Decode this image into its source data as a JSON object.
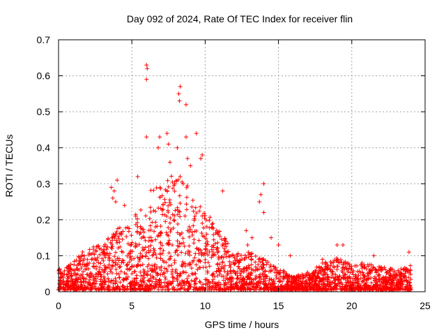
{
  "chart_data": {
    "type": "scatter",
    "title": "Day 092 of 2024, Rate Of TEC Index for receiver flin",
    "xlabel": "GPS time / hours",
    "ylabel": "ROTI / TECUs",
    "xlim": [
      0,
      25
    ],
    "ylim": [
      0,
      0.7
    ],
    "xticks": [
      "0",
      "5",
      "10",
      "15",
      "20",
      "25"
    ],
    "xtick_values": [
      0,
      5,
      10,
      15,
      20,
      25
    ],
    "yticks": [
      "0",
      "0.1",
      "0.2",
      "0.3",
      "0.4",
      "0.5",
      "0.6",
      "0.7"
    ],
    "ytick_values": [
      0,
      0.1,
      0.2,
      0.3,
      0.4,
      0.5,
      0.6,
      0.7
    ],
    "grid": true,
    "marker": "+",
    "color": "#ff0000",
    "envelope": {
      "description": "approximate per-hour range of the dense ROTI point cloud (hours, upper ROTI)",
      "x": [
        0,
        1,
        2,
        3,
        4,
        5,
        6,
        7,
        8,
        9,
        10,
        11,
        12,
        13,
        14,
        15,
        16,
        17,
        18,
        19,
        20,
        21,
        22,
        23,
        24
      ],
      "upper": [
        0.06,
        0.08,
        0.12,
        0.13,
        0.17,
        0.2,
        0.28,
        0.3,
        0.33,
        0.28,
        0.22,
        0.17,
        0.1,
        0.11,
        0.09,
        0.06,
        0.04,
        0.05,
        0.08,
        0.09,
        0.07,
        0.07,
        0.07,
        0.06,
        0.07
      ]
    },
    "outliers": [
      {
        "x": 6.0,
        "y": 0.63
      },
      {
        "x": 6.05,
        "y": 0.62
      },
      {
        "x": 6.0,
        "y": 0.59
      },
      {
        "x": 8.3,
        "y": 0.57
      },
      {
        "x": 8.2,
        "y": 0.55
      },
      {
        "x": 8.25,
        "y": 0.53
      },
      {
        "x": 8.7,
        "y": 0.52
      },
      {
        "x": 9.4,
        "y": 0.44
      },
      {
        "x": 7.4,
        "y": 0.44
      },
      {
        "x": 6.9,
        "y": 0.43
      },
      {
        "x": 6.0,
        "y": 0.43
      },
      {
        "x": 8.7,
        "y": 0.43
      },
      {
        "x": 7.5,
        "y": 0.41
      },
      {
        "x": 6.8,
        "y": 0.4
      },
      {
        "x": 8.1,
        "y": 0.4
      },
      {
        "x": 9.8,
        "y": 0.38
      },
      {
        "x": 9.7,
        "y": 0.37
      },
      {
        "x": 8.8,
        "y": 0.37
      },
      {
        "x": 7.6,
        "y": 0.36
      },
      {
        "x": 9.0,
        "y": 0.35
      },
      {
        "x": 5.4,
        "y": 0.32
      },
      {
        "x": 3.6,
        "y": 0.29
      },
      {
        "x": 3.8,
        "y": 0.28
      },
      {
        "x": 4.0,
        "y": 0.31
      },
      {
        "x": 14.0,
        "y": 0.3
      },
      {
        "x": 13.8,
        "y": 0.27
      },
      {
        "x": 13.7,
        "y": 0.25
      },
      {
        "x": 14.0,
        "y": 0.22
      },
      {
        "x": 11.2,
        "y": 0.28
      },
      {
        "x": 3.7,
        "y": 0.26
      },
      {
        "x": 3.9,
        "y": 0.25
      },
      {
        "x": 4.5,
        "y": 0.24
      },
      {
        "x": 12.8,
        "y": 0.17
      },
      {
        "x": 13.2,
        "y": 0.15
      },
      {
        "x": 12.9,
        "y": 0.13
      },
      {
        "x": 14.5,
        "y": 0.15
      },
      {
        "x": 15.0,
        "y": 0.13
      },
      {
        "x": 15.8,
        "y": 0.1
      },
      {
        "x": 19.0,
        "y": 0.13
      },
      {
        "x": 19.4,
        "y": 0.13
      },
      {
        "x": 21.5,
        "y": 0.1
      },
      {
        "x": 23.9,
        "y": 0.11
      },
      {
        "x": 20.7,
        "y": 0.08
      },
      {
        "x": 18.0,
        "y": 0.09
      }
    ]
  }
}
